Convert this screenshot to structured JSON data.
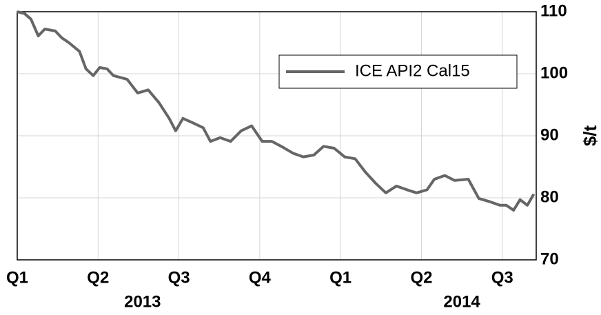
{
  "chart_data": {
    "type": "line",
    "y_label": "$/t",
    "x": [
      0,
      0.09,
      0.17,
      0.26,
      0.34,
      0.47,
      0.55,
      0.64,
      0.77,
      0.85,
      0.94,
      1.02,
      1.11,
      1.19,
      1.36,
      1.49,
      1.62,
      1.75,
      1.88,
      1.96,
      2.05,
      2.17,
      2.3,
      2.39,
      2.51,
      2.64,
      2.77,
      2.9,
      3.03,
      3.15,
      3.28,
      3.41,
      3.54,
      3.67,
      3.79,
      3.92,
      4.05,
      4.18,
      4.31,
      4.43,
      4.56,
      4.69,
      4.82,
      4.94,
      5.07,
      5.16,
      5.29,
      5.41,
      5.58,
      5.71,
      5.84,
      5.97,
      6.05,
      6.14,
      6.22,
      6.31,
      6.39
    ],
    "series": [
      {
        "name": "ICE API2 Cal15",
        "color": "#666666",
        "values": [
          110,
          109.7,
          108.8,
          106.1,
          107.2,
          106.9,
          105.8,
          105,
          103.6,
          100.8,
          99.7,
          101,
          100.8,
          99.7,
          99.1,
          96.9,
          97.4,
          95.4,
          92.8,
          90.8,
          92.8,
          92.1,
          91.3,
          89.1,
          89.7,
          89.1,
          90.8,
          91.6,
          89.1,
          89.1,
          88.2,
          87.2,
          86.6,
          86.9,
          88.3,
          88.0,
          86.6,
          86.3,
          84.1,
          82.4,
          80.8,
          81.9,
          81.3,
          80.8,
          81.3,
          83.0,
          83.6,
          82.8,
          83.0,
          79.9,
          79.4,
          78.8,
          78.8,
          78.0,
          79.7,
          78.8,
          80.6
        ]
      }
    ],
    "xlim": [
      0,
      6.42
    ],
    "xticks": [
      {
        "value": 0,
        "label": "Q1"
      },
      {
        "value": 1,
        "label": "Q2"
      },
      {
        "value": 2,
        "label": "Q3"
      },
      {
        "value": 3,
        "label": "Q4"
      },
      {
        "value": 4,
        "label": "Q1"
      },
      {
        "value": 5,
        "label": "Q2"
      },
      {
        "value": 6,
        "label": "Q3"
      }
    ],
    "x_group_labels": [
      {
        "value": 1.55,
        "label": "2013"
      },
      {
        "value": 5.5,
        "label": "2014"
      }
    ],
    "ylim": [
      70,
      110
    ],
    "yticks": [
      70,
      80,
      90,
      100,
      110
    ],
    "grid": true,
    "legend_position": "upper right"
  }
}
